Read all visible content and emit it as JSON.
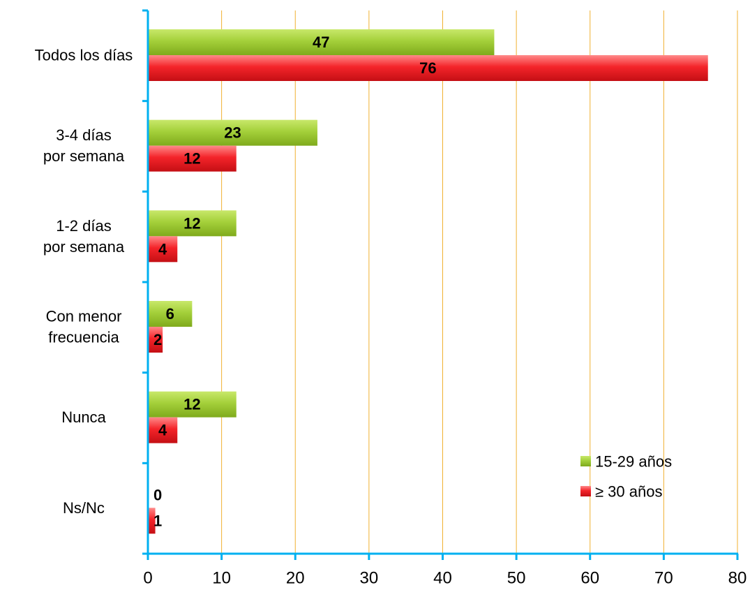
{
  "chart_data": {
    "type": "bar",
    "orientation": "horizontal",
    "categories": [
      [
        "Todos los días"
      ],
      [
        "3-4 días",
        "por semana"
      ],
      [
        "1-2 días",
        "por semana"
      ],
      [
        "Con menor",
        "frecuencia"
      ],
      [
        "Nunca"
      ],
      [
        "Ns/Nc"
      ]
    ],
    "series": [
      {
        "name": "15-29 años",
        "values": [
          47,
          23,
          12,
          6,
          12,
          0
        ],
        "color": "#9ccc2a"
      },
      {
        "name": "≥ 30 años",
        "values": [
          76,
          12,
          4,
          2,
          4,
          1
        ],
        "color": "#ee1c24"
      }
    ],
    "xlim": [
      0,
      80
    ],
    "xticks": [
      "0",
      "10",
      "20",
      "30",
      "40",
      "50",
      "60",
      "70",
      "80"
    ],
    "grid": true,
    "gridline_color": "#f0b030",
    "axis_color": "#00b0f0",
    "legend_position": "bottom-right"
  }
}
